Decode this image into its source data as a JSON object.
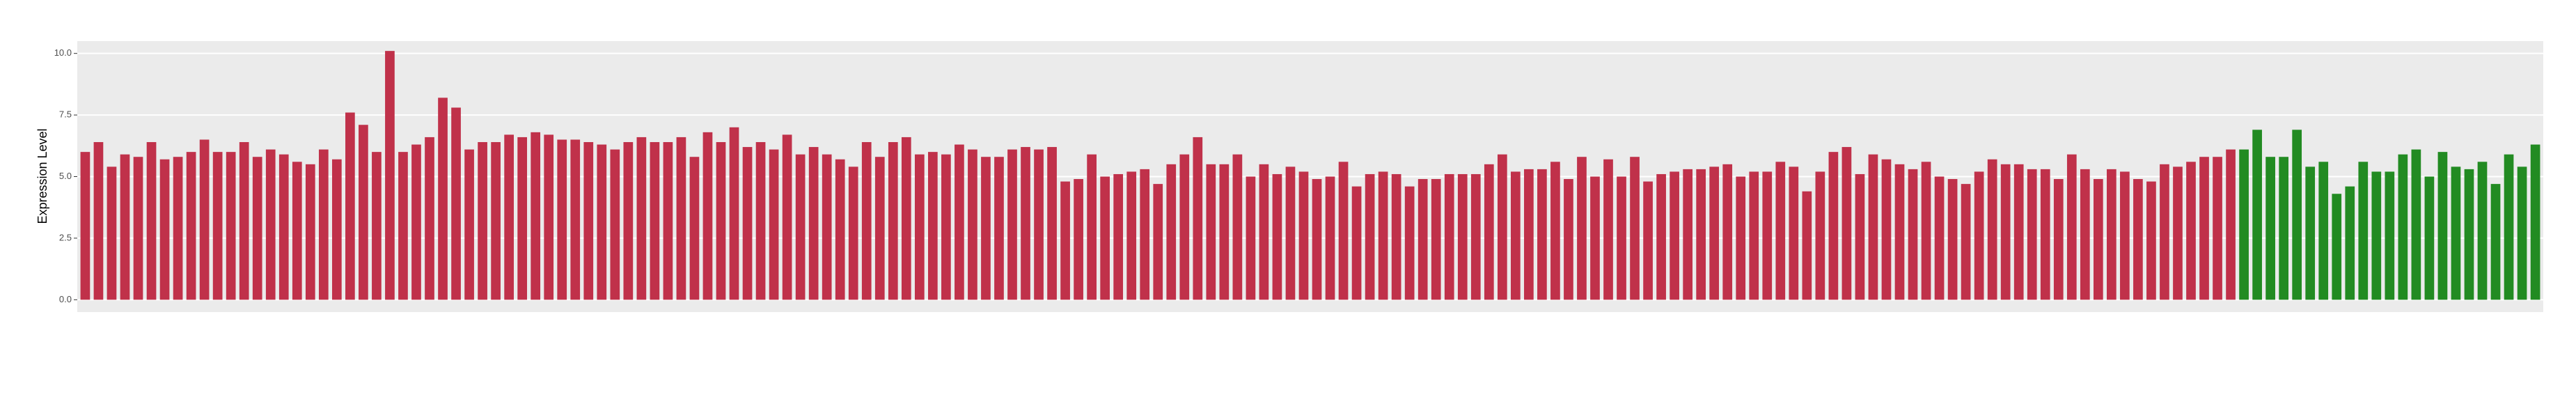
{
  "chart_data": {
    "type": "bar",
    "y_label": "Expression Level",
    "ylim": [
      -0.5,
      10.5
    ],
    "yticks": [
      {
        "value": 0,
        "label": "0.0"
      },
      {
        "value": 2.5,
        "label": "2.5"
      },
      {
        "value": 5,
        "label": "5.0"
      },
      {
        "value": 7.5,
        "label": "7.5"
      },
      {
        "value": 10,
        "label": "10.0"
      }
    ],
    "grid": true,
    "series": [
      {
        "color": "#c0314a",
        "values": [
          6.0,
          6.4,
          5.4,
          5.9,
          5.8,
          6.4,
          5.7,
          5.8,
          6.0,
          6.5,
          6.0,
          6.0,
          6.4,
          5.8,
          6.1,
          5.9,
          5.6,
          5.5,
          6.1,
          5.7,
          7.6,
          7.1,
          6.0,
          10.1,
          6.0,
          6.3,
          6.6,
          8.2,
          7.8,
          6.1,
          6.4,
          6.4,
          6.7,
          6.6,
          6.8,
          6.7,
          6.5,
          6.5,
          6.4,
          6.3,
          6.1,
          6.4,
          6.6,
          6.4,
          6.4,
          6.6,
          5.8,
          6.8,
          6.4,
          7.0,
          6.2,
          6.4,
          6.1,
          6.7,
          5.9,
          6.2,
          5.9,
          5.7,
          5.4,
          6.4,
          5.8,
          6.4,
          6.6,
          5.9,
          6.0,
          5.9,
          6.3,
          6.1,
          5.8,
          5.8,
          6.1,
          6.2,
          6.1,
          6.2,
          4.8,
          4.9,
          5.9,
          5.0,
          5.1,
          5.2,
          5.3,
          4.7,
          5.5,
          5.9,
          6.6,
          5.5,
          5.5,
          5.9,
          5.0,
          5.5,
          5.1,
          5.4,
          5.2,
          4.9,
          5.0,
          5.6,
          4.6,
          5.1,
          5.2,
          5.1,
          4.6,
          4.9,
          4.9,
          5.1,
          5.1,
          5.1,
          5.5,
          5.9,
          5.2,
          5.3,
          5.3,
          5.6,
          4.9,
          5.8,
          5.0,
          5.7,
          5.0,
          5.8,
          4.8,
          5.1,
          5.2,
          5.3,
          5.3,
          5.4,
          5.5,
          5.0,
          5.2,
          5.2,
          5.6,
          5.4,
          4.4,
          5.2,
          6.0,
          6.2,
          5.1,
          5.9,
          5.7,
          5.5,
          5.3,
          5.6,
          5.0,
          4.9,
          4.7,
          5.2,
          5.7,
          5.5,
          5.5,
          5.3,
          5.3,
          4.9,
          5.9,
          5.3,
          4.9,
          5.3,
          5.2,
          4.9,
          4.8,
          5.5,
          5.4,
          5.6,
          5.8,
          5.8,
          6.1
        ]
      },
      {
        "color": "#228b22",
        "values": [
          6.1,
          6.9,
          5.8,
          5.8,
          6.9,
          5.4,
          5.6,
          4.3,
          4.6,
          5.6,
          5.2,
          5.2,
          5.9,
          6.1,
          5.0,
          6.0,
          5.4,
          5.3,
          5.6,
          4.7,
          5.9,
          5.4,
          6.3
        ]
      }
    ]
  }
}
